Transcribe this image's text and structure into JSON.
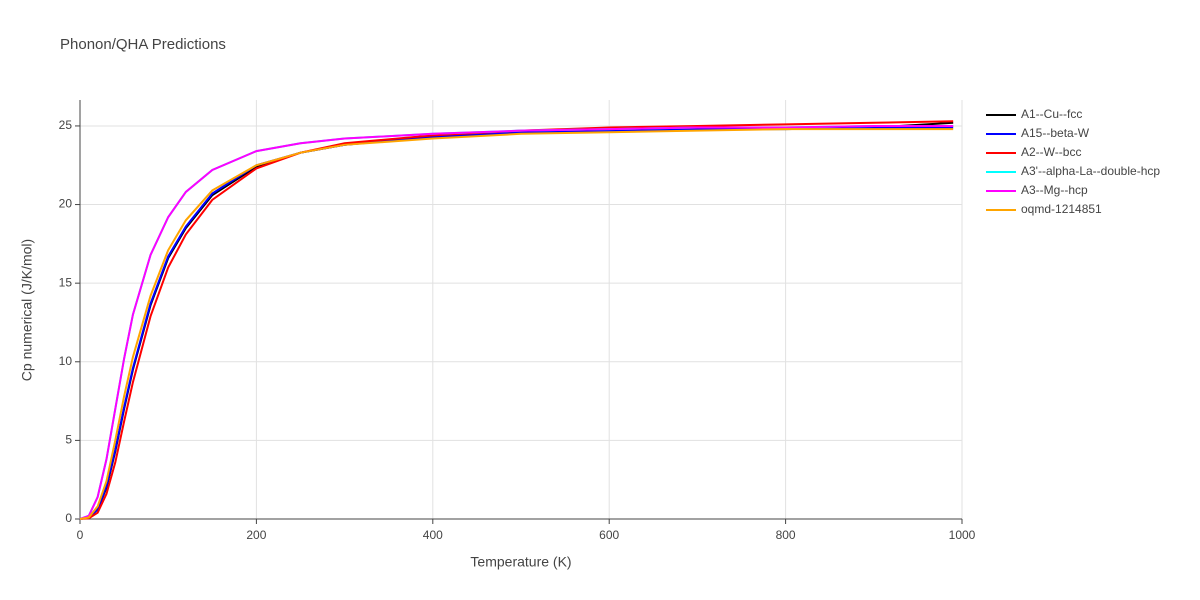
{
  "chart_data": {
    "type": "line",
    "title": "Phonon/QHA Predictions",
    "x_label": "Temperature (K)",
    "y_label": "Cp numerical (J/K/mol)",
    "x": [
      0,
      10,
      20,
      30,
      40,
      50,
      60,
      80,
      100,
      120,
      150,
      200,
      250,
      300,
      400,
      500,
      600,
      700,
      800,
      900,
      990
    ],
    "series": [
      {
        "name": "A1--Cu--fcc",
        "color": "#000000",
        "values": [
          0,
          0.1,
          0.6,
          2,
          4.3,
          7,
          9.5,
          13.6,
          16.6,
          18.5,
          20.6,
          22.4,
          23.3,
          23.8,
          24.3,
          24.6,
          24.7,
          24.8,
          24.8,
          24.9,
          25.2
        ]
      },
      {
        "name": "A15--beta-W",
        "color": "#0000ff",
        "values": [
          0,
          0.1,
          0.6,
          2.1,
          4.4,
          7.1,
          9.6,
          13.7,
          16.7,
          18.6,
          20.7,
          22.5,
          23.3,
          23.8,
          24.3,
          24.6,
          24.7,
          24.8,
          24.9,
          24.9,
          24.9
        ]
      },
      {
        "name": "A2--W--bcc",
        "color": "#ff0000",
        "values": [
          0,
          0.05,
          0.4,
          1.6,
          3.6,
          6.2,
          8.7,
          12.9,
          16,
          18.1,
          20.3,
          22.3,
          23.3,
          23.9,
          24.4,
          24.7,
          24.9,
          25,
          25.1,
          25.2,
          25.3
        ]
      },
      {
        "name": "A3'--alpha-La--double-hcp",
        "color": "#00ffff",
        "values": [
          0,
          0.2,
          1.4,
          3.8,
          7,
          10.2,
          13,
          16.8,
          19.2,
          20.8,
          22.2,
          23.4,
          23.9,
          24.2,
          24.5,
          24.7,
          24.8,
          24.9,
          24.9,
          25,
          25
        ]
      },
      {
        "name": "A3--Mg--hcp",
        "color": "#ff00ff",
        "values": [
          0,
          0.2,
          1.4,
          3.8,
          7,
          10.2,
          13,
          16.8,
          19.2,
          20.8,
          22.2,
          23.4,
          23.9,
          24.2,
          24.5,
          24.7,
          24.8,
          24.9,
          24.9,
          25,
          25
        ]
      },
      {
        "name": "oqmd-1214851",
        "color": "#ffa500",
        "values": [
          0,
          0.1,
          0.8,
          2.4,
          5,
          7.8,
          10.3,
          14.2,
          17.1,
          19,
          20.9,
          22.5,
          23.3,
          23.8,
          24.2,
          24.5,
          24.6,
          24.7,
          24.8,
          24.8,
          24.8
        ]
      }
    ],
    "xlim": [
      0,
      1000
    ],
    "ylim": [
      0,
      26.65
    ],
    "xticks": [
      0,
      200,
      400,
      600,
      800,
      1000
    ],
    "yticks": [
      0,
      5,
      10,
      15,
      20,
      25
    ],
    "grid": true
  }
}
